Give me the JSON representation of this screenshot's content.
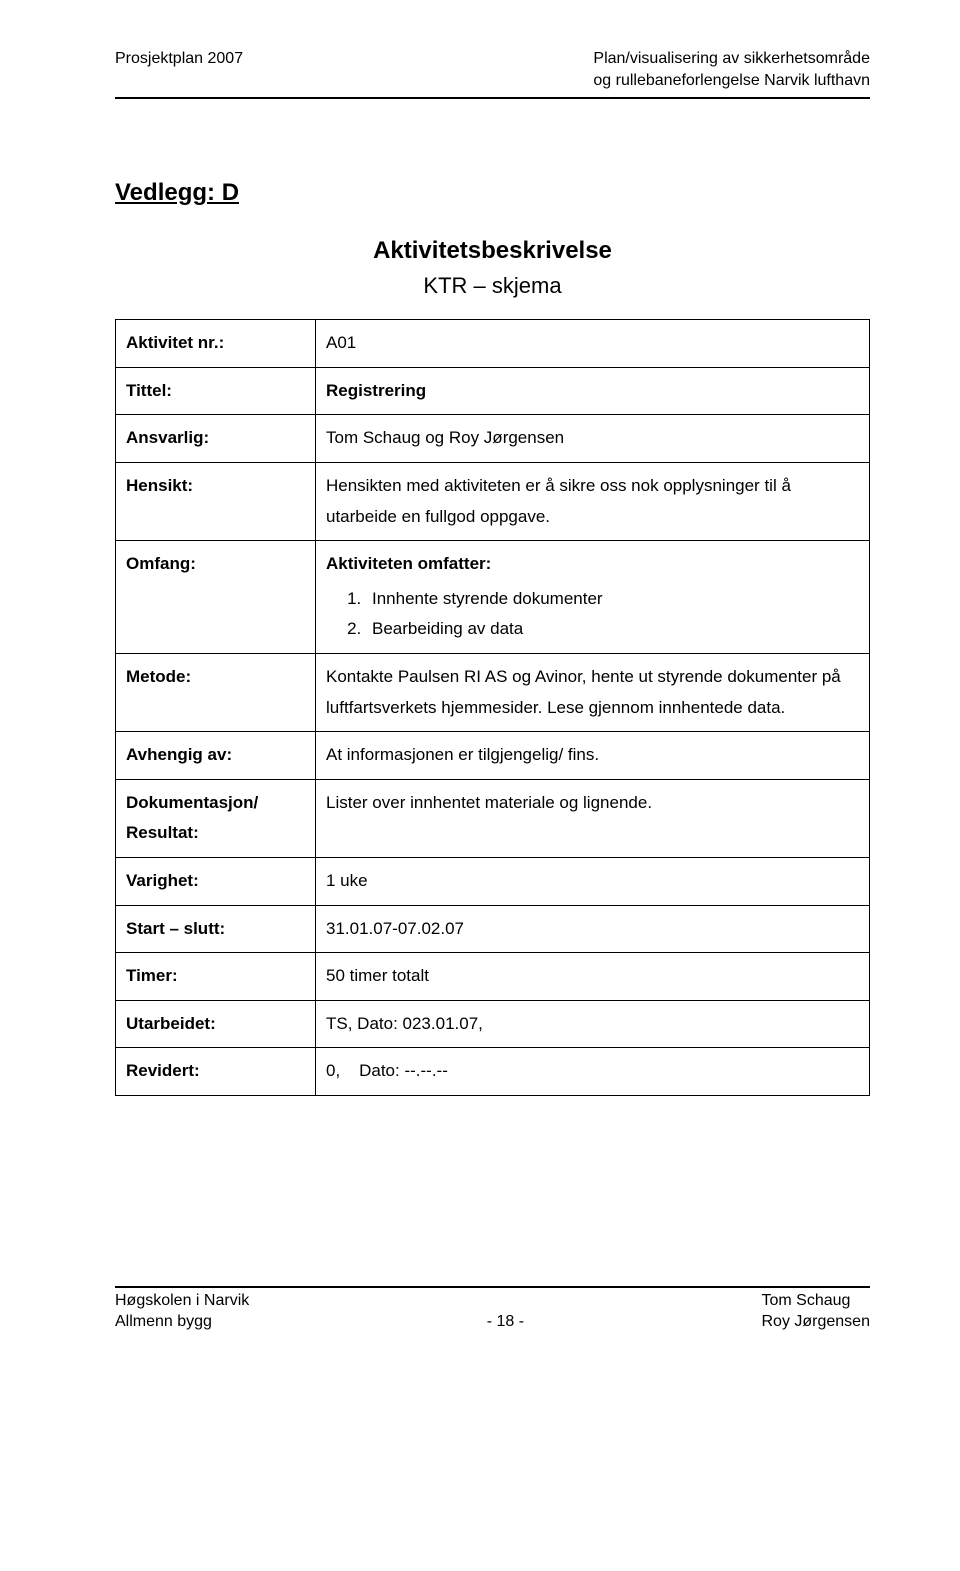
{
  "header": {
    "left": "Prosjektplan 2007",
    "right_line1": "Plan/visualisering av sikkerhetsområde",
    "right_line2": "og rullebaneforlengelse Narvik lufthavn"
  },
  "attachment_label": "Vedlegg: D",
  "title": "Aktivitetsbeskrivelse",
  "subtitle": "KTR – skjema",
  "rows": {
    "activity_no": {
      "label": "Aktivitet nr.:",
      "value": "A01"
    },
    "tittel": {
      "label": "Tittel:",
      "value": "Registrering",
      "bold": true
    },
    "ansvarlig": {
      "label": "Ansvarlig:",
      "value": "Tom Schaug og Roy Jørgensen"
    },
    "hensikt": {
      "label": "Hensikt:",
      "value": "Hensikten med aktiviteten er å sikre oss nok opplysninger til å utarbeide en fullgod oppgave."
    },
    "omfang": {
      "label": "Omfang:",
      "intro": "Aktiviteten omfatter:",
      "items": [
        "Innhente styrende dokumenter",
        "Bearbeiding av data"
      ]
    },
    "metode": {
      "label": "Metode:",
      "value": "Kontakte Paulsen RI AS og Avinor, hente ut styrende dokumenter på luftfartsverkets hjemmesider. Lese gjennom innhentede data."
    },
    "avhengig": {
      "label": "Avhengig av:",
      "value": "At informasjonen er tilgjengelig/ fins."
    },
    "dok": {
      "label_line1": "Dokumentasjon/",
      "label_line2": "Resultat:",
      "value": "Lister over innhentet materiale og lignende."
    },
    "varighet": {
      "label": "Varighet:",
      "value": "1 uke"
    },
    "start_slutt": {
      "label": "Start – slutt:",
      "value": "31.01.07-07.02.07"
    },
    "timer": {
      "label": "Timer:",
      "value": "50 timer totalt"
    },
    "utarbeidet": {
      "label": "Utarbeidet:",
      "value": "TS, Dato: 023.01.07,"
    },
    "revidert": {
      "label": "Revidert:",
      "prefix": "0,",
      "value": "Dato: --.--.--"
    }
  },
  "footer": {
    "left_line1": "Høgskolen i Narvik",
    "left_line2": "Allmenn bygg",
    "center": "- 18 -",
    "right_line1": "Tom Schaug",
    "right_line2": "Roy Jørgensen"
  }
}
